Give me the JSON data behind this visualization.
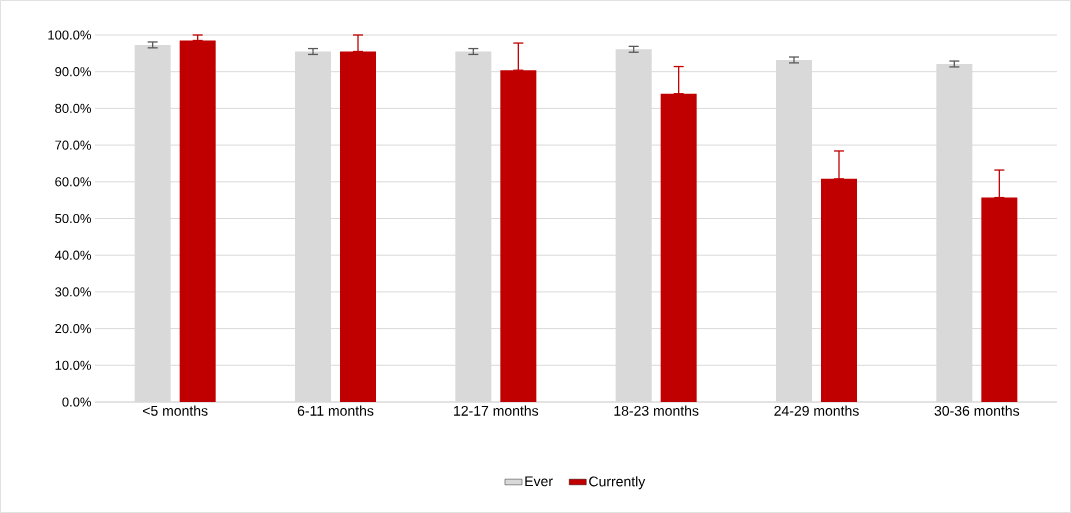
{
  "chart_data": {
    "type": "bar",
    "categories": [
      "<5 months",
      "6-11 months",
      "12-17 months",
      "18-23 months",
      "24-29 months",
      "30-36 months"
    ],
    "series": [
      {
        "name": "Ever",
        "color": "#d9d9d9",
        "values": [
          97.3,
          95.5,
          95.5,
          96.1,
          93.2,
          92.1
        ],
        "errors": [
          0.8,
          0.8,
          0.8,
          0.8,
          0.8,
          0.8
        ]
      },
      {
        "name": "Currently",
        "color": "#c00000",
        "values": [
          98.5,
          95.5,
          90.4,
          84.0,
          60.8,
          55.7
        ],
        "errors": [
          [
            98.5,
            100
          ],
          [
            95.5,
            100
          ],
          [
            90.4,
            97.8
          ],
          [
            84.0,
            91.4
          ],
          [
            60.8,
            68.4
          ],
          [
            55.7,
            63.2
          ]
        ]
      }
    ],
    "ylim": [
      0,
      100
    ],
    "yticks": [
      {
        "value": 0,
        "label": "0.0%"
      },
      {
        "value": 10,
        "label": "10.0%"
      },
      {
        "value": 20,
        "label": "20.0%"
      },
      {
        "value": 30,
        "label": "30.0%"
      },
      {
        "value": 40,
        "label": "40.0%"
      },
      {
        "value": 50,
        "label": "50.0%"
      },
      {
        "value": 60,
        "label": "60.0%"
      },
      {
        "value": 70,
        "label": "70.0%"
      },
      {
        "value": 80,
        "label": "80.0%"
      },
      {
        "value": 90,
        "label": "90.0%"
      },
      {
        "value": 100,
        "label": "100.0%"
      }
    ],
    "grid": "y",
    "legend": "bottom"
  }
}
